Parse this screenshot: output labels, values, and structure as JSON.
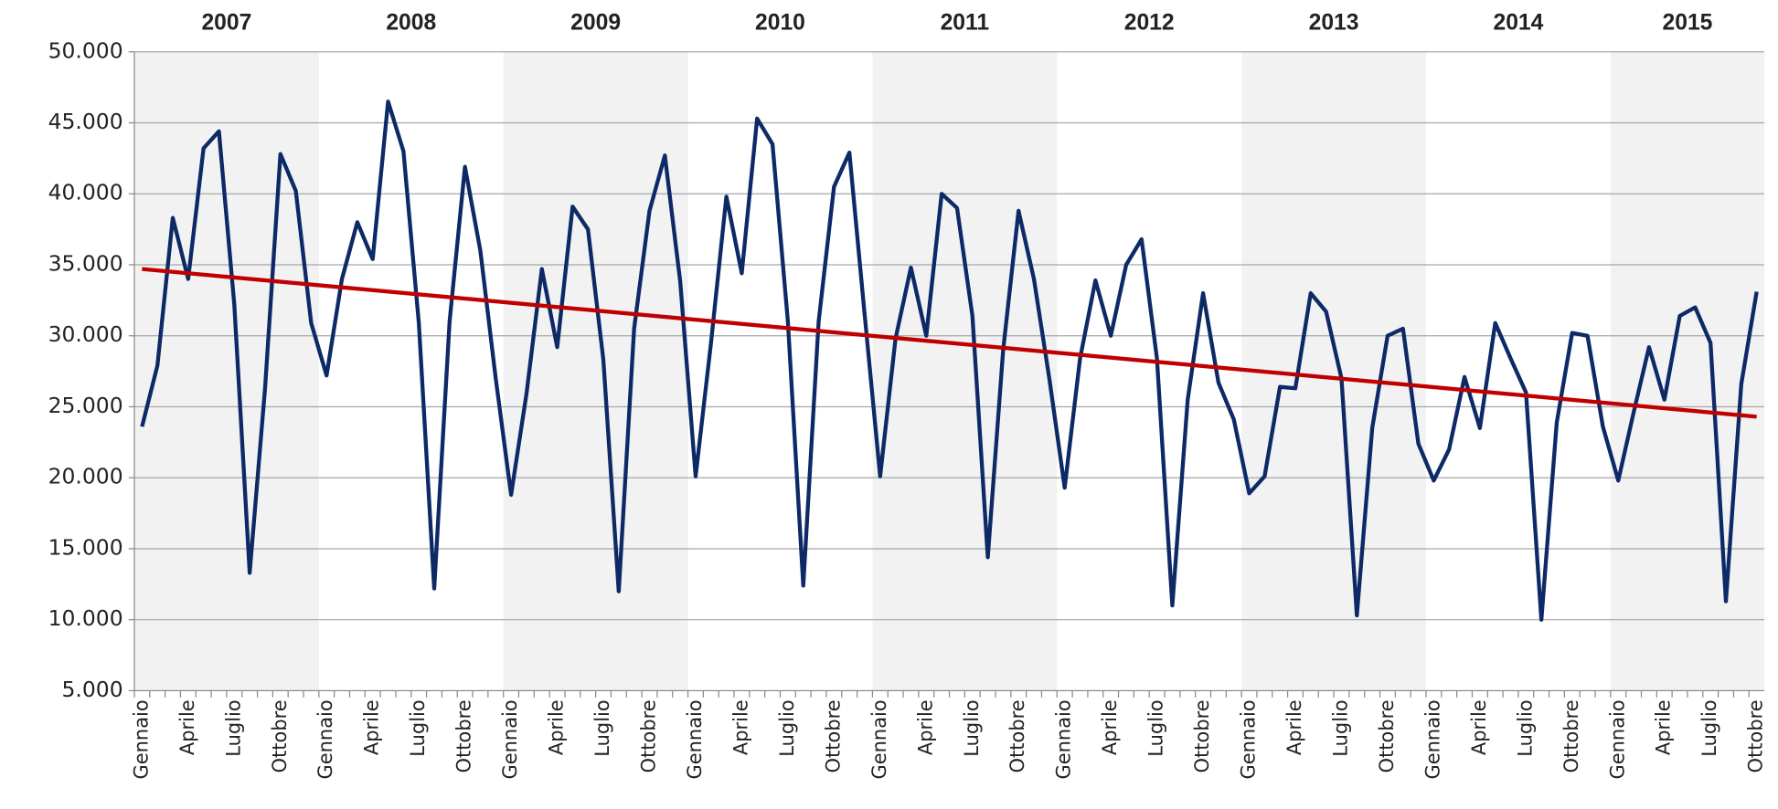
{
  "chart_data": {
    "type": "line",
    "years": [
      "2007",
      "2008",
      "2009",
      "2010",
      "2011",
      "2012",
      "2013",
      "2014",
      "2015"
    ],
    "categories": [
      "Gennaio",
      null,
      null,
      "Aprile",
      null,
      null,
      "Luglio",
      null,
      null,
      "Ottobre",
      null,
      null,
      "Gennaio",
      null,
      null,
      "Aprile",
      null,
      null,
      "Luglio",
      null,
      null,
      "Ottobre",
      null,
      null,
      "Gennaio",
      null,
      null,
      "Aprile",
      null,
      null,
      "Luglio",
      null,
      null,
      "Ottobre",
      null,
      null,
      "Gennaio",
      null,
      null,
      "Aprile",
      null,
      null,
      "Luglio",
      null,
      null,
      "Ottobre",
      null,
      null,
      "Gennaio",
      null,
      null,
      "Aprile",
      null,
      null,
      "Luglio",
      null,
      null,
      "Ottobre",
      null,
      null,
      "Gennaio",
      null,
      null,
      "Aprile",
      null,
      null,
      "Luglio",
      null,
      null,
      "Ottobre",
      null,
      null,
      "Gennaio",
      null,
      null,
      "Aprile",
      null,
      null,
      "Luglio",
      null,
      null,
      "Ottobre",
      null,
      null,
      "Gennaio",
      null,
      null,
      "Aprile",
      null,
      null,
      "Luglio",
      null,
      null,
      "Ottobre",
      null,
      null,
      "Gennaio",
      null,
      null,
      "Aprile",
      null,
      null,
      "Luglio",
      null,
      null,
      "Ottobre"
    ],
    "series": [
      {
        "color": "#0d2a66",
        "values": [
          23600,
          27900,
          38300,
          34000,
          43200,
          44400,
          32200,
          13300,
          26300,
          42800,
          40200,
          30900,
          27200,
          34000,
          38000,
          35400,
          46500,
          43000,
          30900,
          12200,
          31000,
          41900,
          36000,
          27000,
          18800,
          25900,
          34700,
          29200,
          39100,
          37500,
          28300,
          12000,
          30500,
          38800,
          42700,
          33800,
          20100,
          29500,
          39800,
          34400,
          45300,
          43500,
          31000,
          12400,
          31000,
          40500,
          42900,
          31400,
          20100,
          29800,
          34800,
          30000,
          40000,
          39000,
          31400,
          14400,
          29000,
          38800,
          34000,
          27000,
          19300,
          28400,
          33900,
          30000,
          35000,
          36800,
          28400,
          11000,
          25500,
          33000,
          26700,
          24100,
          18900,
          20100,
          26400,
          26300,
          33000,
          31700,
          27000,
          10300,
          23500,
          30000,
          30500,
          22400,
          19800,
          22000,
          27100,
          23500,
          30900,
          28400,
          26000,
          10000,
          23900,
          30200,
          30000,
          23600,
          19800,
          24600,
          29200,
          25500,
          31400,
          32000,
          29500,
          11300,
          26600,
          33100
        ]
      }
    ],
    "trend": {
      "color": "#c00000",
      "values": [
        34700,
        24300
      ]
    },
    "ylim": [
      5000,
      50000
    ],
    "yticks": [
      {
        "value": 5000,
        "label": "5.000"
      },
      {
        "value": 10000,
        "label": "10.000"
      },
      {
        "value": 15000,
        "label": "15.000"
      },
      {
        "value": 20000,
        "label": "20.000"
      },
      {
        "value": 25000,
        "label": "25.000"
      },
      {
        "value": 30000,
        "label": "30.000"
      },
      {
        "value": 35000,
        "label": "35.000"
      },
      {
        "value": 40000,
        "label": "40.000"
      },
      {
        "value": 45000,
        "label": "45.000"
      },
      {
        "value": 50000,
        "label": "50.000"
      }
    ],
    "grid": true
  }
}
